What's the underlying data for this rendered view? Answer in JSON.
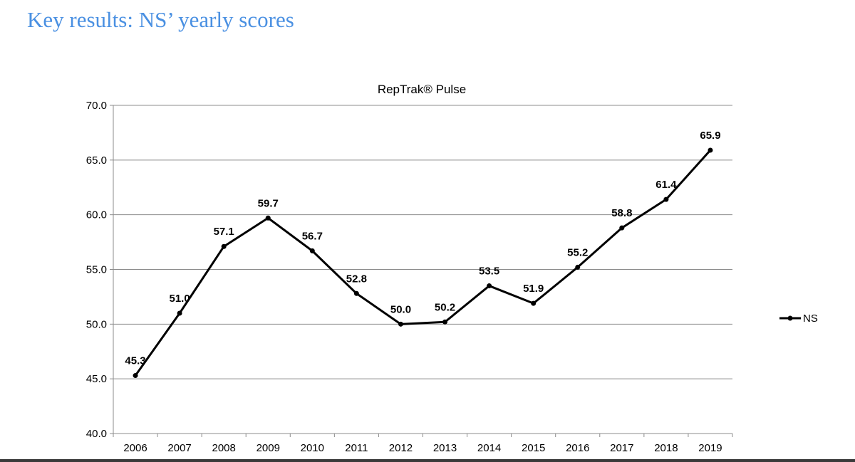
{
  "slide": {
    "title": "Key results: NS’ yearly scores"
  },
  "chart_data": {
    "type": "line",
    "title": "RepTrak® Pulse",
    "xlabel": "",
    "ylabel": "",
    "categories": [
      "2006",
      "2007",
      "2008",
      "2009",
      "2010",
      "2011",
      "2012",
      "2013",
      "2014",
      "2015",
      "2016",
      "2017",
      "2018",
      "2019"
    ],
    "series": [
      {
        "name": "NS",
        "color": "#000000",
        "values": [
          45.3,
          51.0,
          57.1,
          59.7,
          56.7,
          52.8,
          50.0,
          50.2,
          53.5,
          51.9,
          55.2,
          58.8,
          61.4,
          65.9
        ],
        "labels": [
          "45.3",
          "51.0",
          "57.1",
          "59.7",
          "56.7",
          "52.8",
          "50.0",
          "50.2",
          "53.5",
          "51.9",
          "55.2",
          "58.8",
          "61.4",
          "65.9"
        ]
      }
    ],
    "ylim": [
      40,
      70
    ],
    "yticks": [
      "40.0",
      "45.0",
      "50.0",
      "55.0",
      "60.0",
      "65.0",
      "70.0"
    ],
    "grid": true,
    "legend": "right"
  }
}
